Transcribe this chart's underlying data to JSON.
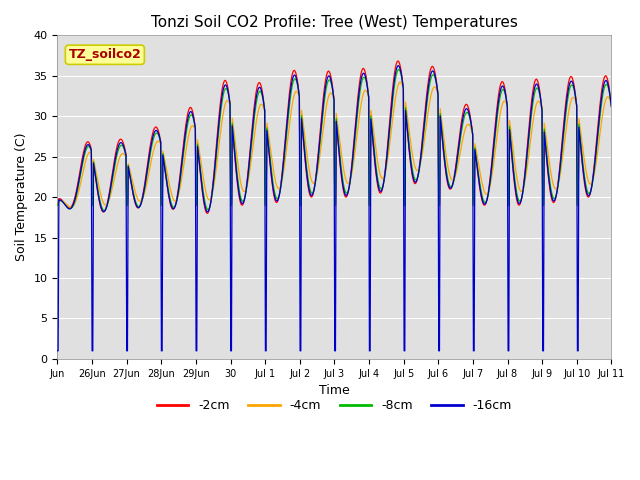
{
  "title": "Tonzi Soil CO2 Profile: Tree (West) Temperatures",
  "ylabel": "Soil Temperature (C)",
  "xlabel": "Time",
  "legend_label": "TZ_soilco2",
  "series_labels": [
    "-2cm",
    "-4cm",
    "-8cm",
    "-16cm"
  ],
  "series_colors": [
    "#ff0000",
    "#ffa500",
    "#00bb00",
    "#0000cc"
  ],
  "ylim": [
    0,
    40
  ],
  "yticks": [
    0,
    5,
    10,
    15,
    20,
    25,
    30,
    35,
    40
  ],
  "background_color": "#e0e0e0",
  "figure_bg": "#ffffff",
  "legend_box_color": "#ffff99",
  "legend_box_edge": "#cccc00",
  "legend_text_color": "#aa0000",
  "grid_color": "#ffffff",
  "tick_fontsize": 8,
  "title_fontsize": 11,
  "label_fontsize": 9
}
